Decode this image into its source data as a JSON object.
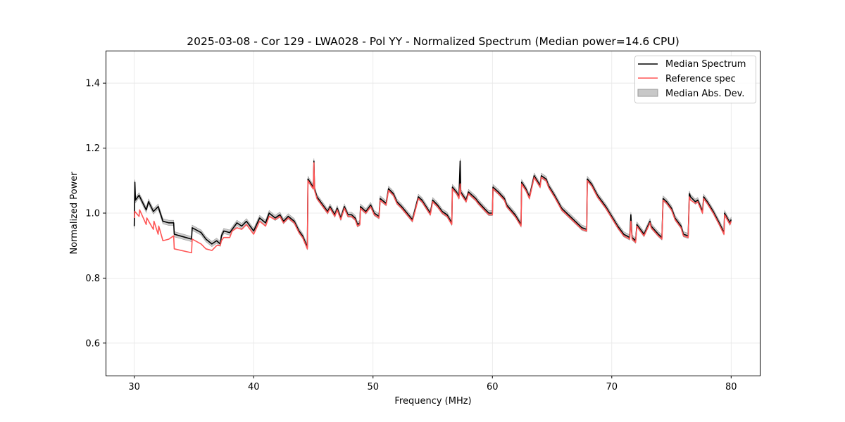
{
  "chart_data": {
    "type": "line",
    "title": "2025-03-08 - Cor 129 - LWA028 - Pol YY - Normalized Spectrum (Median power=14.6 CPU)",
    "xlabel": "Frequency (MHz)",
    "ylabel": "Normalized Power",
    "xlim": [
      27.6,
      82.4
    ],
    "ylim": [
      0.5,
      1.5
    ],
    "xticks": [
      30,
      40,
      50,
      60,
      70,
      80
    ],
    "xtick_labels": [
      "30",
      "40",
      "50",
      "60",
      "70",
      "80"
    ],
    "yticks": [
      0.6,
      0.8,
      1.0,
      1.2,
      1.4
    ],
    "ytick_labels": [
      "0.6",
      "0.8",
      "1.0",
      "1.2",
      "1.4"
    ],
    "grid": true,
    "legend_position": "top-right",
    "series": [
      {
        "name": "Median Spectrum",
        "color": "#000000",
        "x": [
          30.0,
          30.05,
          30.1,
          30.4,
          31.0,
          31.2,
          31.6,
          32.0,
          32.4,
          32.9,
          33.3,
          33.35,
          34.8,
          34.85,
          35.6,
          36.0,
          36.5,
          36.9,
          37.2,
          37.3,
          37.5,
          38.0,
          38.2,
          38.6,
          39.0,
          39.4,
          40.0,
          40.5,
          41.0,
          41.3,
          41.8,
          42.2,
          42.5,
          42.9,
          43.4,
          43.8,
          44.1,
          44.5,
          44.55,
          44.9,
          45.0,
          45.05,
          45.1,
          45.3,
          45.8,
          46.2,
          46.4,
          46.8,
          47.0,
          47.3,
          47.6,
          47.9,
          48.2,
          48.5,
          48.7,
          48.9,
          48.95,
          49.4,
          49.8,
          50.1,
          50.5,
          50.6,
          51.1,
          51.3,
          51.7,
          52.0,
          52.4,
          53.3,
          53.8,
          54.1,
          54.8,
          55.0,
          55.4,
          55.8,
          56.2,
          56.6,
          56.65,
          57.0,
          57.2,
          57.3,
          57.35,
          57.8,
          58.0,
          58.6,
          58.8,
          59.3,
          59.7,
          60.0,
          60.05,
          60.5,
          61.0,
          61.2,
          61.9,
          62.4,
          62.45,
          62.8,
          63.1,
          63.5,
          64.0,
          64.1,
          64.5,
          64.7,
          65.2,
          65.8,
          67.5,
          67.9,
          67.95,
          68.3,
          68.8,
          69.5,
          70.0,
          70.5,
          71.0,
          71.5,
          71.6,
          71.7,
          72.0,
          72.1,
          72.7,
          73.2,
          73.3,
          73.9,
          74.2,
          74.3,
          74.6,
          75.0,
          75.3,
          75.5,
          75.8,
          76.0,
          76.4,
          76.5,
          76.6,
          77.0,
          77.2,
          77.6,
          77.7,
          78.0,
          78.5,
          79.0,
          79.4,
          79.45,
          79.9,
          80.0
        ],
        "y": [
          0.96,
          1.095,
          1.04,
          1.055,
          1.01,
          1.035,
          1.005,
          1.02,
          0.975,
          0.97,
          0.97,
          0.935,
          0.92,
          0.955,
          0.94,
          0.92,
          0.905,
          0.915,
          0.905,
          0.93,
          0.945,
          0.94,
          0.95,
          0.97,
          0.96,
          0.975,
          0.945,
          0.985,
          0.97,
          1.0,
          0.985,
          0.995,
          0.975,
          0.99,
          0.975,
          0.945,
          0.93,
          0.895,
          1.105,
          1.085,
          1.08,
          1.16,
          1.075,
          1.05,
          1.025,
          1.005,
          1.02,
          0.995,
          1.015,
          0.985,
          1.02,
          0.995,
          0.995,
          0.985,
          0.965,
          0.97,
          1.02,
          1.005,
          1.025,
          1.0,
          0.99,
          1.045,
          1.03,
          1.075,
          1.06,
          1.035,
          1.02,
          0.98,
          1.05,
          1.04,
          1.0,
          1.04,
          1.025,
          1.005,
          0.995,
          0.97,
          1.08,
          1.065,
          1.05,
          1.16,
          1.065,
          1.04,
          1.065,
          1.045,
          1.035,
          1.015,
          1.0,
          1.0,
          1.08,
          1.065,
          1.045,
          1.025,
          0.995,
          0.965,
          1.095,
          1.075,
          1.05,
          1.115,
          1.085,
          1.115,
          1.105,
          1.085,
          1.055,
          1.015,
          0.955,
          0.95,
          1.105,
          1.09,
          1.055,
          1.02,
          0.99,
          0.96,
          0.935,
          0.925,
          0.995,
          0.925,
          0.915,
          0.965,
          0.935,
          0.975,
          0.96,
          0.935,
          0.925,
          1.045,
          1.035,
          1.015,
          0.985,
          0.975,
          0.96,
          0.935,
          0.93,
          1.06,
          1.05,
          1.035,
          1.04,
          1.005,
          1.05,
          1.035,
          1.005,
          0.97,
          0.94,
          1.0,
          0.97,
          0.98
        ]
      },
      {
        "name": "Reference spec",
        "color": "#ff5555",
        "x": [
          30.0,
          30.05,
          30.4,
          30.45,
          31.0,
          31.05,
          31.6,
          31.65,
          32.0,
          32.05,
          32.4,
          32.9,
          33.3,
          33.35,
          34.8,
          34.85,
          35.6,
          36.0,
          36.5,
          36.9,
          37.2,
          37.3,
          37.5,
          38.0,
          38.2,
          38.6,
          39.0,
          39.4,
          40.0,
          40.5,
          41.0,
          41.3,
          41.8,
          42.2,
          42.5,
          42.9,
          43.4,
          43.8,
          44.1,
          44.5,
          44.55,
          44.9,
          45.0,
          45.05,
          45.1,
          45.3,
          45.8,
          46.2,
          46.4,
          46.8,
          47.0,
          47.3,
          47.6,
          47.9,
          48.2,
          48.5,
          48.7,
          48.9,
          48.95,
          49.4,
          49.8,
          50.1,
          50.5,
          50.6,
          51.1,
          51.3,
          51.7,
          52.0,
          52.4,
          53.3,
          53.8,
          54.1,
          54.8,
          55.0,
          55.4,
          55.8,
          56.2,
          56.6,
          56.65,
          57.0,
          57.2,
          57.3,
          57.35,
          57.8,
          58.0,
          58.6,
          58.8,
          59.3,
          59.7,
          60.0,
          60.05,
          60.5,
          61.0,
          61.2,
          61.9,
          62.4,
          62.45,
          62.8,
          63.1,
          63.5,
          64.0,
          64.1,
          64.5,
          64.7,
          65.2,
          65.8,
          67.5,
          67.9,
          67.95,
          68.3,
          68.8,
          69.5,
          70.0,
          70.5,
          71.0,
          71.5,
          71.6,
          71.7,
          72.0,
          72.1,
          72.7,
          73.2,
          73.3,
          73.9,
          74.2,
          74.3,
          74.6,
          75.0,
          75.3,
          75.5,
          75.8,
          76.0,
          76.4,
          76.5,
          76.6,
          77.0,
          77.2,
          77.6,
          77.7,
          78.0,
          78.5,
          79.0,
          79.4,
          79.45,
          79.9,
          80.0
        ],
        "y": [
          0.985,
          1.005,
          0.99,
          1.01,
          0.965,
          0.985,
          0.95,
          0.975,
          0.935,
          0.96,
          0.915,
          0.92,
          0.93,
          0.89,
          0.878,
          0.92,
          0.905,
          0.89,
          0.885,
          0.9,
          0.9,
          0.915,
          0.925,
          0.925,
          0.945,
          0.955,
          0.95,
          0.965,
          0.935,
          0.975,
          0.96,
          0.99,
          0.98,
          0.99,
          0.97,
          0.985,
          0.97,
          0.94,
          0.925,
          0.89,
          1.1,
          1.08,
          1.075,
          1.155,
          1.07,
          1.045,
          1.02,
          1.0,
          1.015,
          0.99,
          1.01,
          0.98,
          1.015,
          0.99,
          0.99,
          0.98,
          0.96,
          0.965,
          1.015,
          1.0,
          1.02,
          0.995,
          0.985,
          1.04,
          1.025,
          1.07,
          1.055,
          1.03,
          1.015,
          0.975,
          1.045,
          1.035,
          0.995,
          1.035,
          1.02,
          1.0,
          0.99,
          0.965,
          1.075,
          1.06,
          1.045,
          1.09,
          1.06,
          1.035,
          1.06,
          1.04,
          1.03,
          1.01,
          0.995,
          0.995,
          1.075,
          1.06,
          1.04,
          1.02,
          0.99,
          0.96,
          1.09,
          1.07,
          1.045,
          1.11,
          1.08,
          1.11,
          1.1,
          1.08,
          1.05,
          1.01,
          0.95,
          0.945,
          1.1,
          1.085,
          1.05,
          1.015,
          0.985,
          0.955,
          0.93,
          0.92,
          0.975,
          0.92,
          0.91,
          0.96,
          0.93,
          0.97,
          0.955,
          0.93,
          0.92,
          1.04,
          1.03,
          1.01,
          0.98,
          0.97,
          0.955,
          0.93,
          0.925,
          1.05,
          1.04,
          1.03,
          1.035,
          1.0,
          1.045,
          1.03,
          1.0,
          0.965,
          0.935,
          0.995,
          0.965,
          0.975
        ]
      }
    ],
    "band": {
      "name": "Median Abs. Dev.",
      "color": "#c8c8c8",
      "halfwidth": 0.008
    }
  }
}
